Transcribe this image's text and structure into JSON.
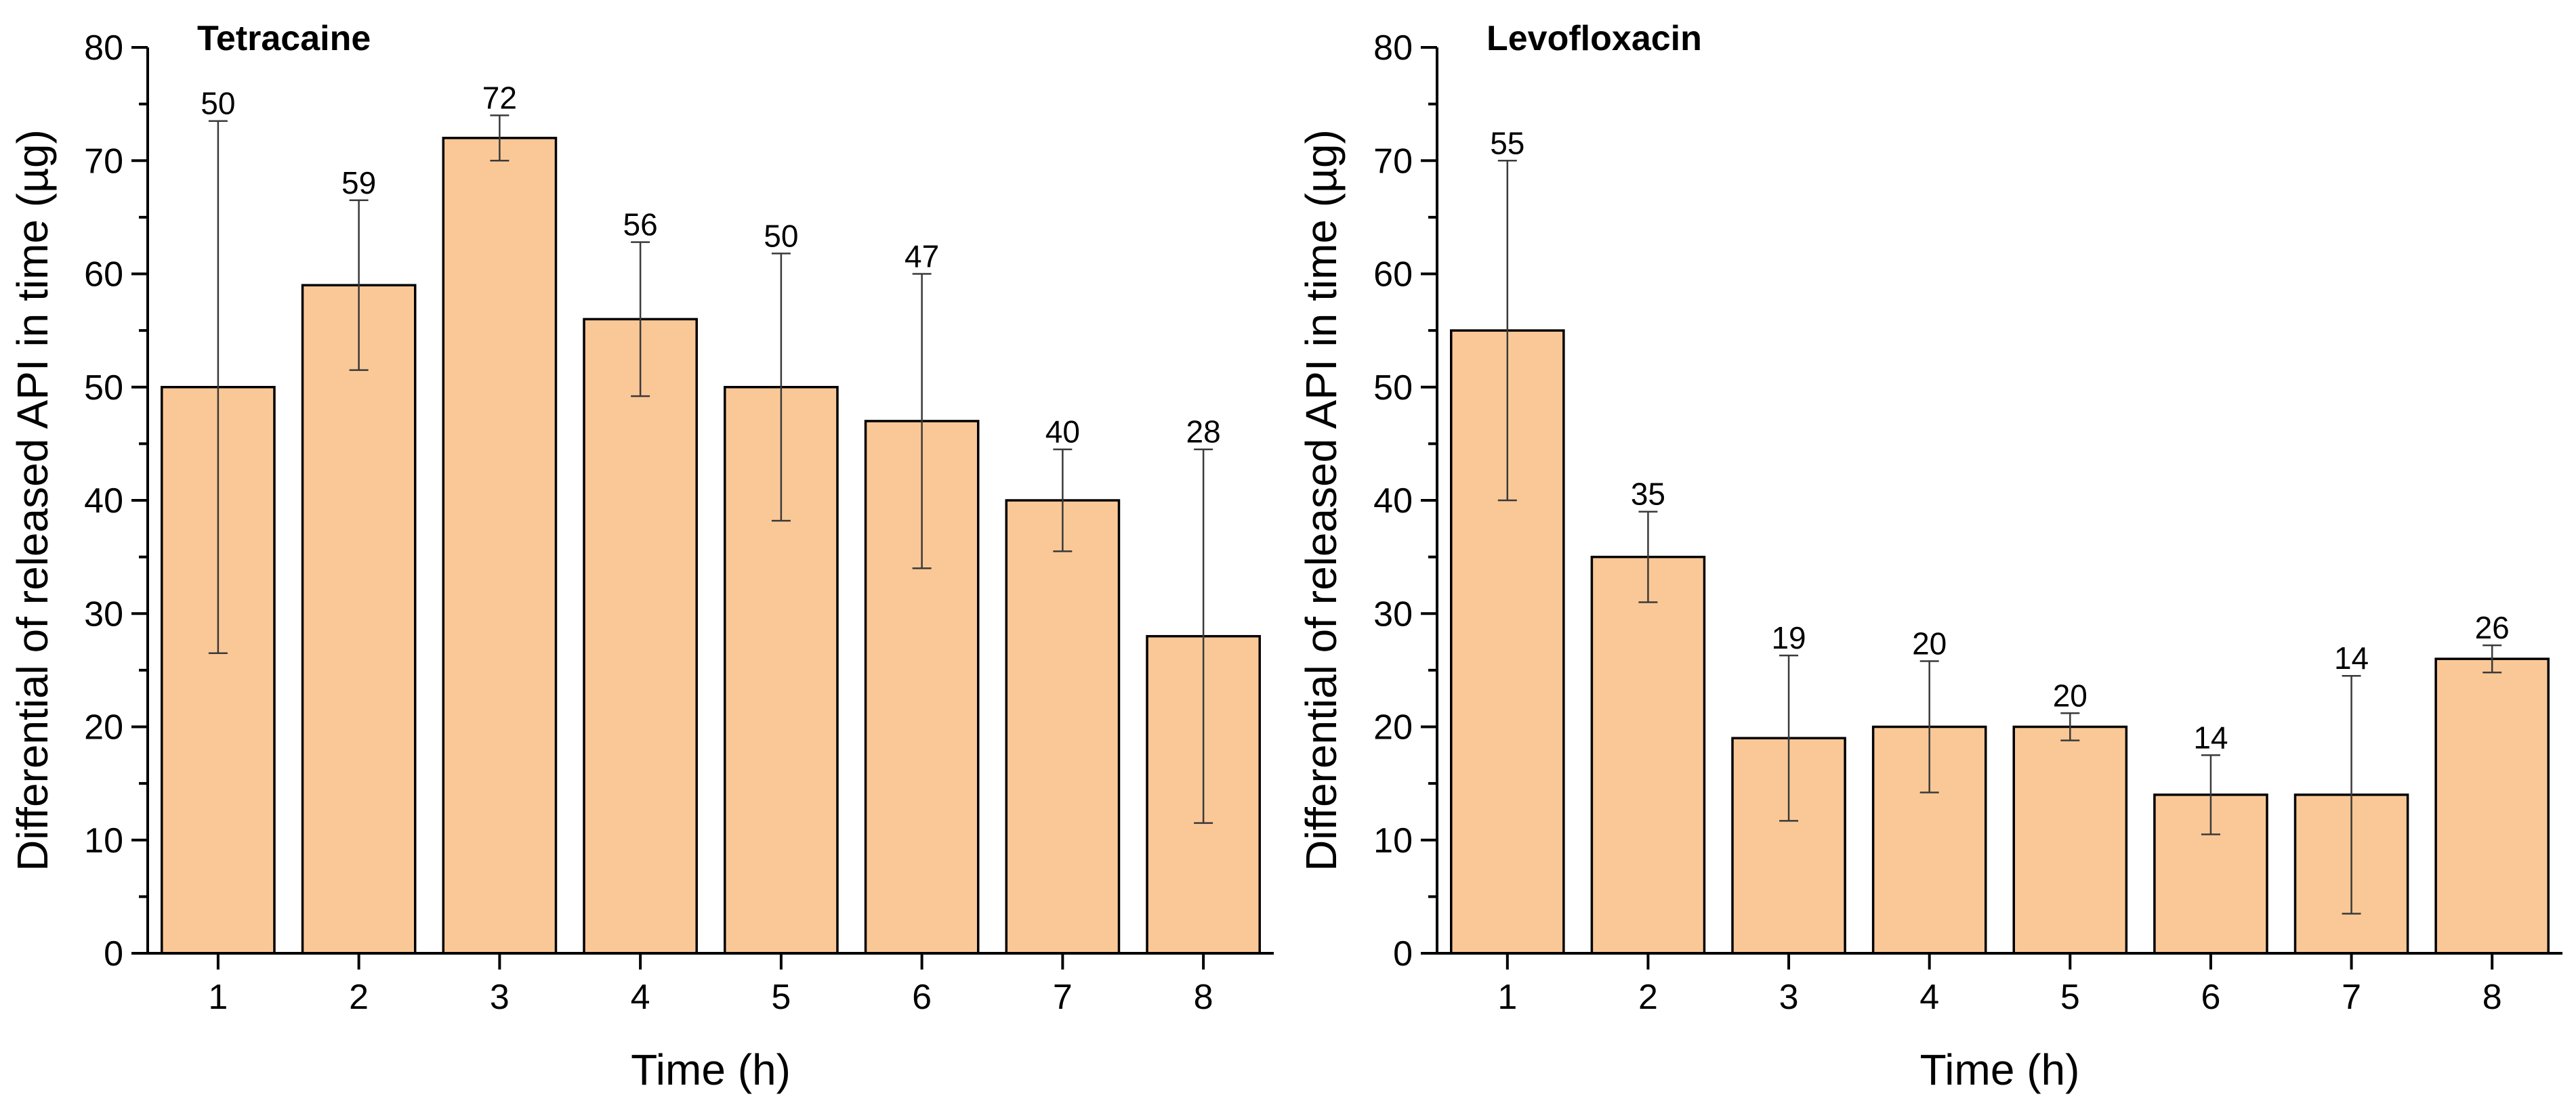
{
  "chart_data": [
    {
      "type": "bar",
      "title": "Tetracaine",
      "xlabel": "Time (h)",
      "ylabel": "Differential of released API in time (µg)",
      "categories": [
        "1",
        "2",
        "3",
        "4",
        "5",
        "6",
        "7",
        "8"
      ],
      "values": [
        50,
        59,
        72,
        56,
        50,
        47,
        40,
        28
      ],
      "data_labels": [
        "50",
        "59",
        "72",
        "56",
        "50",
        "47",
        "40",
        "28"
      ],
      "error_bars": [
        23.5,
        7.5,
        2,
        6.8,
        11.8,
        13,
        4.5,
        16.5
      ],
      "ylim": [
        0,
        80
      ],
      "yticks": [
        0,
        10,
        20,
        30,
        40,
        50,
        60,
        70,
        80
      ],
      "grid": false,
      "legend": "none",
      "bar_color": "#fac897"
    },
    {
      "type": "bar",
      "title": "Levofloxacin",
      "xlabel": "Time (h)",
      "ylabel": "Differential of released API in time (µg)",
      "categories": [
        "1",
        "2",
        "3",
        "4",
        "5",
        "6",
        "7",
        "8"
      ],
      "values": [
        55,
        35,
        19,
        20,
        20,
        14,
        14,
        26
      ],
      "data_labels": [
        "55",
        "35",
        "19",
        "20",
        "20",
        "14",
        "14",
        "26"
      ],
      "error_bars": [
        15,
        4,
        7.3,
        5.8,
        1.2,
        3.5,
        10.5,
        1.2
      ],
      "ylim": [
        0,
        80
      ],
      "yticks": [
        0,
        10,
        20,
        30,
        40,
        50,
        60,
        70,
        80
      ],
      "grid": false,
      "legend": "none",
      "bar_color": "#fac897"
    }
  ]
}
